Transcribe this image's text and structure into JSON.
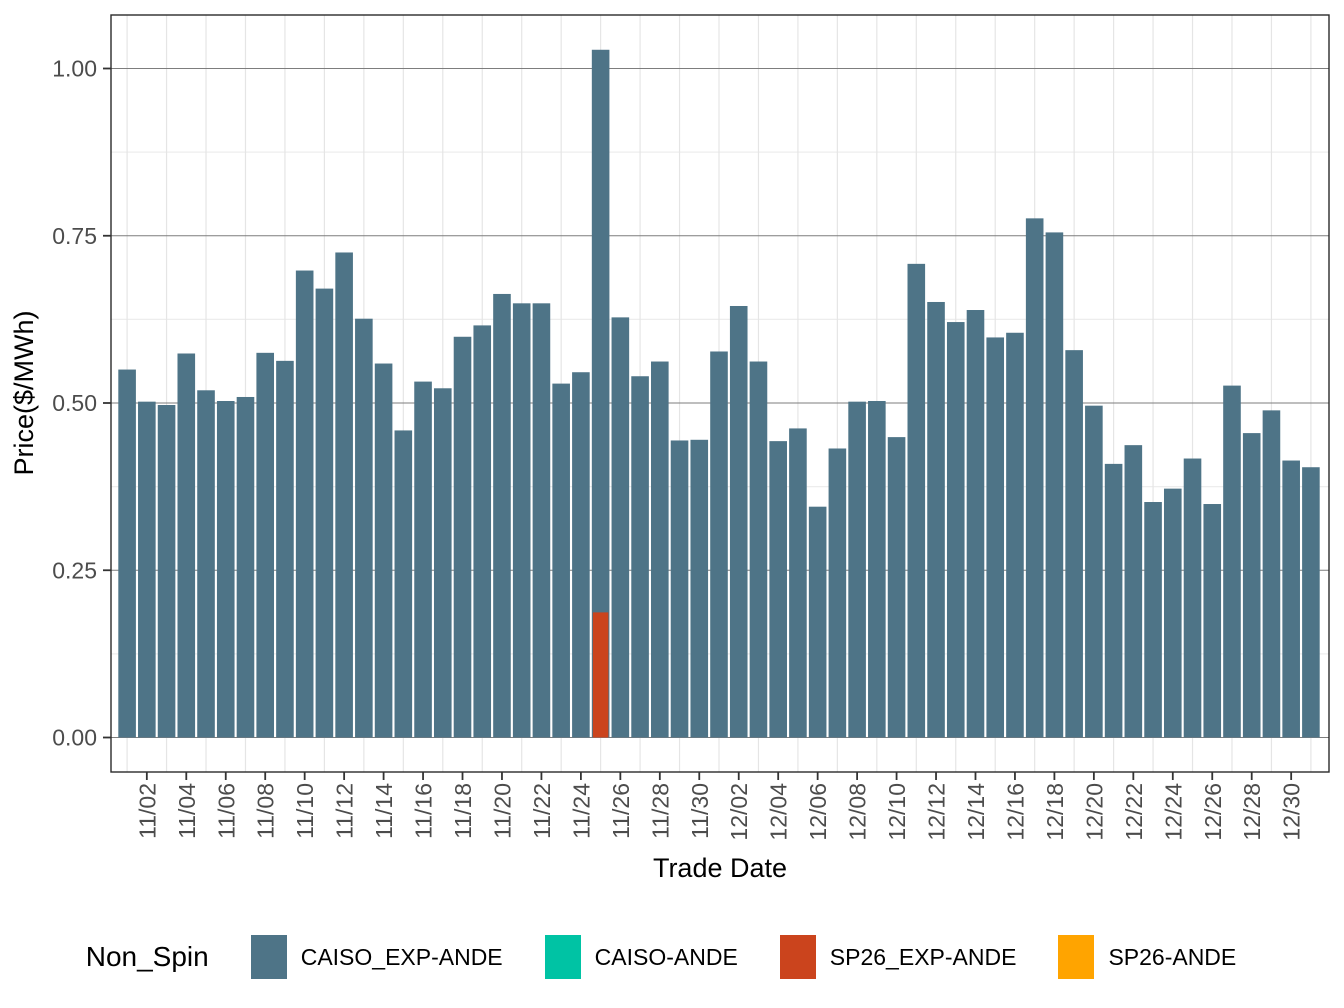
{
  "chart_data": {
    "type": "bar",
    "title": "",
    "xlabel": "Trade Date",
    "ylabel": "Price($/MWh)",
    "ylim": [
      0,
      1.08
    ],
    "grid": "on",
    "legend_position": "bottom",
    "legend": {
      "title": "Non_Spin"
    },
    "yticks": [
      {
        "label": "0.00",
        "value": 0.0
      },
      {
        "label": "0.25",
        "value": 0.25
      },
      {
        "label": "0.50",
        "value": 0.5
      },
      {
        "label": "0.75",
        "value": 0.75
      },
      {
        "label": "1.00",
        "value": 1.0
      }
    ],
    "y_minor_ticks": [
      0.125,
      0.375,
      0.625,
      0.875
    ],
    "x_tick_labels": [
      "11/02",
      "11/04",
      "11/06",
      "11/08",
      "11/10",
      "11/12",
      "11/14",
      "11/16",
      "11/18",
      "11/20",
      "11/22",
      "11/24",
      "11/26",
      "11/28",
      "11/30",
      "12/02",
      "12/04",
      "12/06",
      "12/08",
      "12/10",
      "12/12",
      "12/14",
      "12/16",
      "12/18",
      "12/20",
      "12/22",
      "12/24",
      "12/26",
      "12/28",
      "12/30"
    ],
    "categories": [
      "11/01",
      "11/02",
      "11/03",
      "11/04",
      "11/05",
      "11/06",
      "11/07",
      "11/08",
      "11/09",
      "11/10",
      "11/11",
      "11/12",
      "11/13",
      "11/14",
      "11/15",
      "11/16",
      "11/17",
      "11/18",
      "11/19",
      "11/20",
      "11/21",
      "11/22",
      "11/23",
      "11/24",
      "11/25",
      "11/26",
      "11/27",
      "11/28",
      "11/29",
      "11/30",
      "12/01",
      "12/02",
      "12/03",
      "12/04",
      "12/05",
      "12/06",
      "12/07",
      "12/08",
      "12/09",
      "12/10",
      "12/11",
      "12/12",
      "12/13",
      "12/14",
      "12/15",
      "12/16",
      "12/17",
      "12/18",
      "12/19",
      "12/20",
      "12/21",
      "12/22",
      "12/23",
      "12/24",
      "12/25",
      "12/26",
      "12/27",
      "12/28",
      "12/29",
      "12/30",
      "12/31"
    ],
    "series": [
      {
        "name": "CAISO_EXP-ANDE",
        "color": "#4e7487",
        "values": [
          0.55,
          0.502,
          0.497,
          0.574,
          0.519,
          0.503,
          0.509,
          0.575,
          0.563,
          0.698,
          0.671,
          0.725,
          0.626,
          0.559,
          0.459,
          0.532,
          0.522,
          0.599,
          0.616,
          0.663,
          0.649,
          0.649,
          0.529,
          0.546,
          1.028,
          0.628,
          0.54,
          0.562,
          0.444,
          0.445,
          0.577,
          0.645,
          0.562,
          0.443,
          0.462,
          0.345,
          0.432,
          0.502,
          0.503,
          0.449,
          0.708,
          0.651,
          0.621,
          0.639,
          0.598,
          0.605,
          0.776,
          0.755,
          0.579,
          0.496,
          0.409,
          0.437,
          0.352,
          0.372,
          0.417,
          0.349,
          0.526,
          0.455,
          0.489,
          0.414,
          0.404
        ]
      },
      {
        "name": "CAISO-ANDE",
        "color": "#00c3a4",
        "values": [],
        "points": []
      },
      {
        "name": "SP26_EXP-ANDE",
        "color": "#cb441d",
        "values": [],
        "points": [
          {
            "category": "11/25",
            "value": 0.187
          }
        ]
      },
      {
        "name": "SP26-ANDE",
        "color": "#ffa400",
        "values": [],
        "points": []
      }
    ]
  }
}
